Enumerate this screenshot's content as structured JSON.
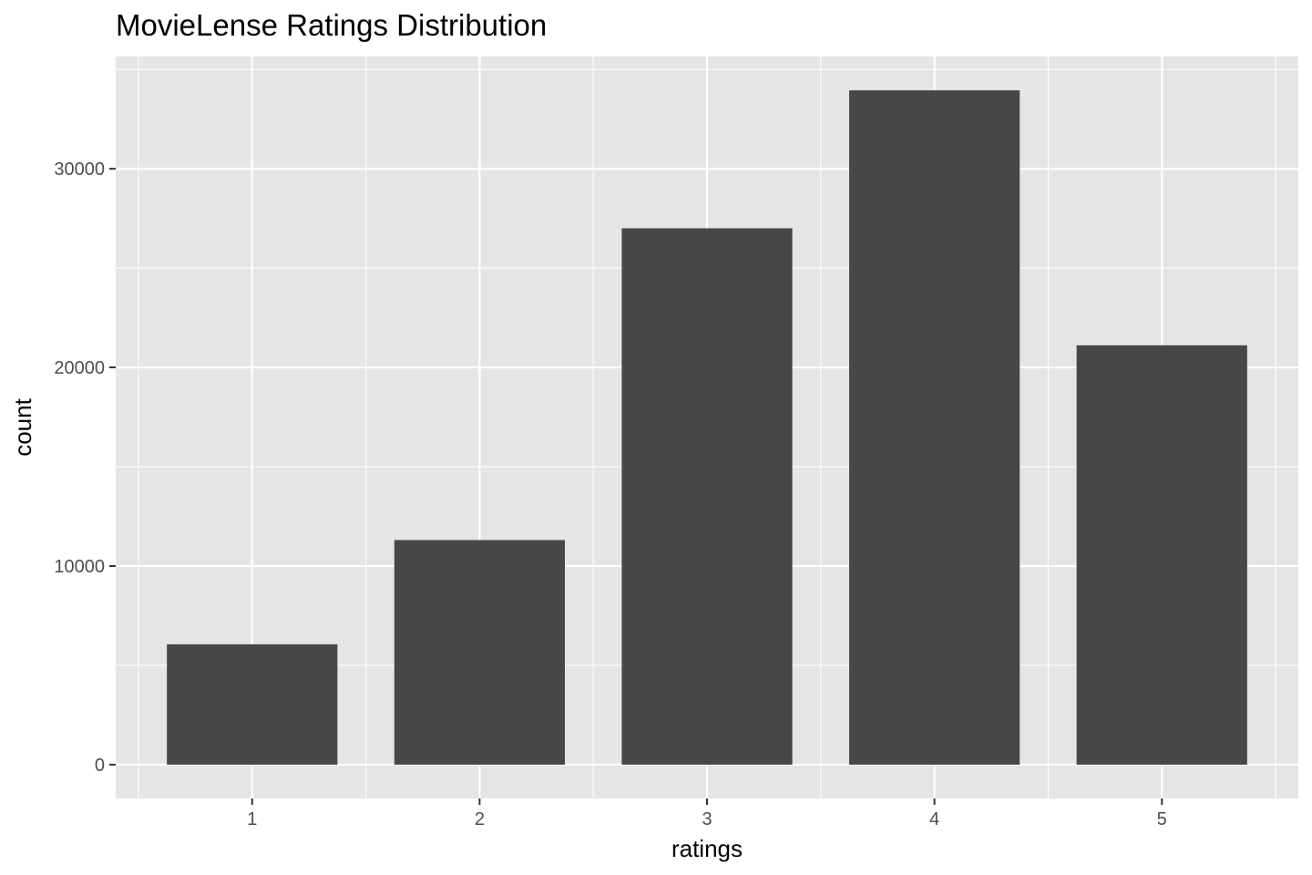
{
  "chart_data": {
    "type": "bar",
    "title": "MovieLense Ratings Distribution",
    "xlabel": "ratings",
    "ylabel": "count",
    "categories": [
      "1",
      "2",
      "3",
      "4",
      "5"
    ],
    "values": [
      6059,
      11307,
      27002,
      33947,
      21111
    ],
    "ylim": [
      -1700,
      35650
    ],
    "yticks": [
      0,
      10000,
      20000,
      30000
    ],
    "ytick_labels": [
      "0",
      "10000",
      "20000",
      "30000"
    ],
    "grid": true,
    "colors": {
      "panel_background": "#e5e5e5",
      "grid_major": "#ffffff",
      "bar_fill": "#474747",
      "tick_text": "#4d4d4d"
    }
  }
}
